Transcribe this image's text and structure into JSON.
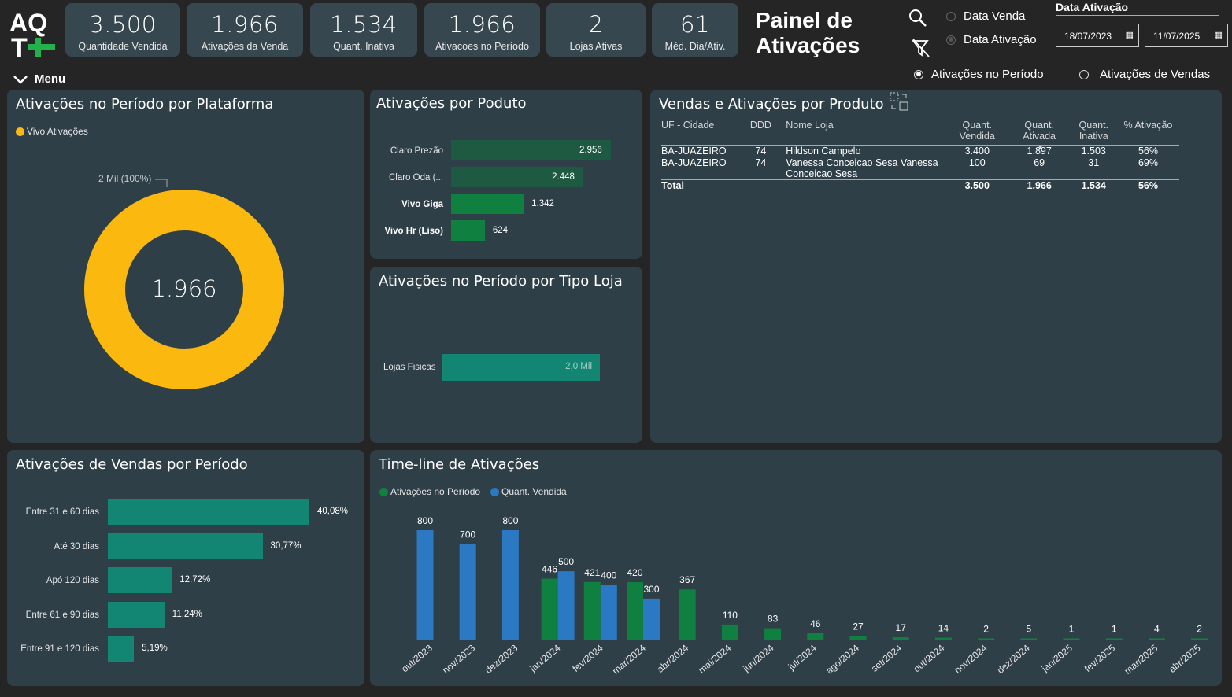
{
  "brand": {
    "logo_text_top": "AQ",
    "logo_text_bottom": "T"
  },
  "kpis": [
    {
      "value": "3.500",
      "label": "Quantidade Vendida"
    },
    {
      "value": "1.966",
      "label": "Ativações da Venda"
    },
    {
      "value": "1.534",
      "label": "Quant. Inativa"
    },
    {
      "value": "1.966",
      "label": "Ativacoes no Período"
    },
    {
      "value": "2",
      "label": "Lojas Ativas"
    },
    {
      "value": "61",
      "label": "Méd. Dia/Ativ."
    }
  ],
  "page_title_line1": "Painel de",
  "page_title_line2": "Ativações",
  "filters": {
    "date_type_options": [
      "Data Venda",
      "Data Ativação"
    ],
    "date_type_selected": "Data Ativação",
    "date_label": "Data Ativação",
    "date_start": "18/07/2023",
    "date_end": "11/07/2025",
    "mode_options": [
      "Ativações no Período",
      "Ativações de Vendas"
    ],
    "mode_selected": "Ativações no Período"
  },
  "menu_label": "Menu",
  "colors": {
    "yellow": "#fbb80f",
    "green": "#108040",
    "teal": "#138573",
    "blue": "#2b79c2",
    "panel": "#2f3f48"
  },
  "donut": {
    "title": "Ativações no Período por Plataforma",
    "legend": "Vivo Ativações",
    "center_value": "1.966",
    "slice_label": "2 Mil (100%)"
  },
  "produto": {
    "title": "Ativações por Poduto",
    "items": [
      {
        "label": "Claro Prezão",
        "value": 2956,
        "display": "2.956",
        "highlight": false
      },
      {
        "label": "Claro Oda (...",
        "value": 2448,
        "display": "2.448",
        "highlight": false
      },
      {
        "label": "Vivo Giga",
        "value": 1342,
        "display": "1.342",
        "highlight": true
      },
      {
        "label": "Vivo Hr (Liso)",
        "value": 624,
        "display": "624",
        "highlight": true
      }
    ]
  },
  "tipo_loja": {
    "title": "Ativações no Período por Tipo Loja",
    "items": [
      {
        "label": "Lojas Fisicas",
        "display": "2,0 Mil"
      }
    ]
  },
  "tabela": {
    "title": "Vendas e Ativações por Produto",
    "headers": [
      "UF - Cidade",
      "DDD",
      "Nome Loja",
      "Quant. Vendida",
      "Quant. Ativada",
      "Quant. Inativa",
      "% Ativação"
    ],
    "rows": [
      [
        "BA-JUAZEIRO",
        "74",
        "Hildson Campelo",
        "3.400",
        "1.897",
        "1.503",
        "56%"
      ],
      [
        "BA-JUAZEIRO",
        "74",
        "Vanessa Conceicao Sesa Vanessa Conceicao Sesa",
        "100",
        "69",
        "31",
        "69%"
      ]
    ],
    "total": [
      "Total",
      "",
      "",
      "3.500",
      "1.966",
      "1.534",
      "56%"
    ]
  },
  "periodo": {
    "title": "Ativações de Vendas por Período",
    "items": [
      {
        "label": "Entre 31 e 60 dias",
        "value": 40.08,
        "display": "40,08%"
      },
      {
        "label": "Até 30 dias",
        "value": 30.77,
        "display": "30,77%"
      },
      {
        "label": "Apó 120 dias",
        "value": 12.72,
        "display": "12,72%"
      },
      {
        "label": "Entre 61 e 90 dias",
        "value": 11.24,
        "display": "11,24%"
      },
      {
        "label": "Entre 91 e 120 dias",
        "value": 5.19,
        "display": "5,19%"
      }
    ]
  },
  "chart_data": {
    "type": "bar",
    "title": "Time-line de Ativações",
    "categories": [
      "out/2023",
      "nov/2023",
      "dez/2023",
      "jan/2024",
      "fev/2024",
      "mar/2024",
      "abr/2024",
      "mai/2024",
      "jun/2024",
      "jul/2024",
      "ago/2024",
      "set/2024",
      "out/2024",
      "nov/2024",
      "dez/2024",
      "jan/2025",
      "fev/2025",
      "mar/2025",
      "abr/2025"
    ],
    "series": [
      {
        "name": "Ativações no Período",
        "color": "#108040",
        "values": [
          null,
          null,
          null,
          446,
          421,
          420,
          367,
          110,
          83,
          46,
          27,
          17,
          14,
          2,
          5,
          1,
          1,
          4,
          2
        ]
      },
      {
        "name": "Quant. Vendida",
        "color": "#2b79c2",
        "values": [
          800,
          700,
          800,
          500,
          400,
          300,
          null,
          null,
          null,
          null,
          null,
          null,
          null,
          null,
          null,
          null,
          null,
          null,
          null
        ]
      }
    ],
    "ylim": [
      0,
      800
    ],
    "legend": "top-left"
  }
}
